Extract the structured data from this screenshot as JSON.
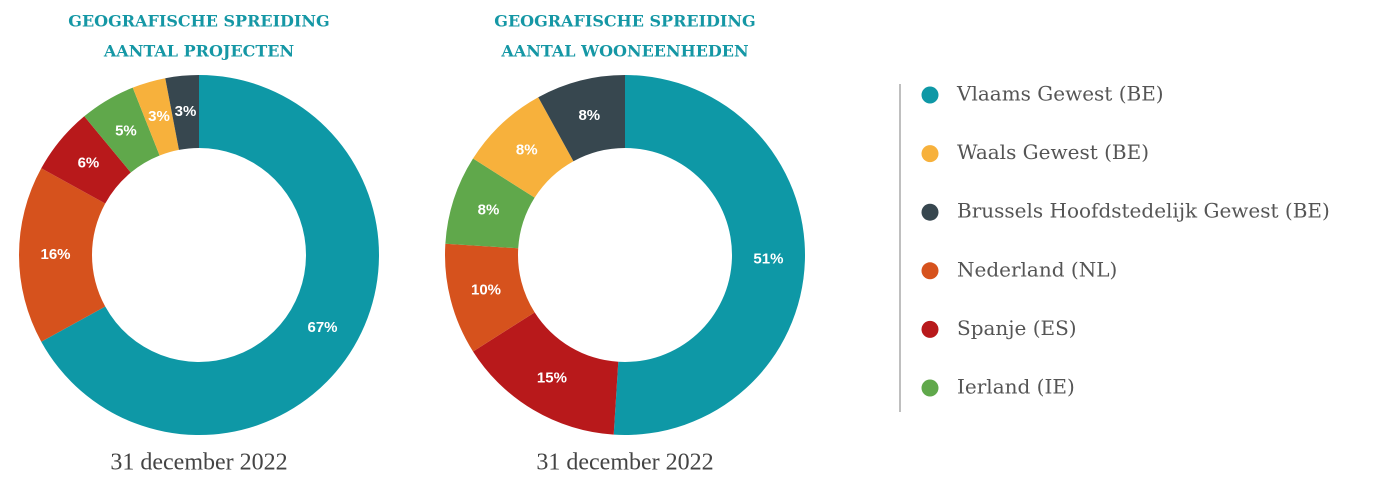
{
  "legend": {
    "entries": [
      "Vlaams Gewest (BE)",
      "Waals Gewest (BE)",
      "Brussels Hoofdstedelijk Gewest (BE)",
      "Nederland (NL)",
      "Spanje (ES)",
      "Ierland (IE)"
    ],
    "colors": [
      "#0e98a6",
      "#f7b13c",
      "#37474f",
      "#d6521d",
      "#b8191b",
      "#60a84b"
    ]
  },
  "chart_data": [
    {
      "type": "donut",
      "title": [
        "GEOGRAFISCHE SPREIDING",
        "AANTAL PROJECTEN"
      ],
      "categories": [
        "Vlaams Gewest (BE)",
        "Nederland (NL)",
        "Spanje (ES)",
        "Ierland (IE)",
        "Waals Gewest (BE)",
        "Brussels Hoofdstedelijk Gewest (BE)"
      ],
      "values": [
        67,
        16,
        6,
        5,
        3,
        3
      ],
      "value_labels": [
        "67%",
        "16%",
        "6%",
        "5%",
        "3%",
        "3%"
      ],
      "caption": "31 december 2022"
    },
    {
      "type": "donut",
      "title": [
        "GEOGRAFISCHE SPREIDING",
        "AANTAL WOONEENHEDEN"
      ],
      "categories": [
        "Vlaams Gewest (BE)",
        "Spanje (ES)",
        "Nederland (NL)",
        "Ierland (IE)",
        "Waals Gewest (BE)",
        "Brussels Hoofdstedelijk Gewest (BE)"
      ],
      "values": [
        51,
        15,
        10,
        8,
        8,
        8
      ],
      "value_labels": [
        "51%",
        "15%",
        "10%",
        "8%",
        "8%",
        "8%"
      ],
      "caption": "31 december 2022"
    }
  ]
}
